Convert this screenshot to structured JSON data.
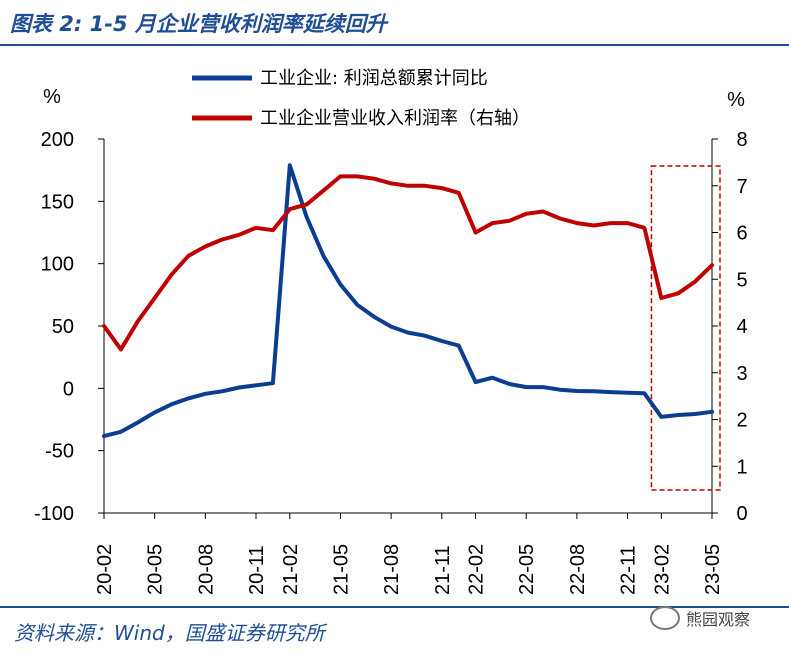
{
  "figure_title": "图表 2:  1-5 月企业营收利润率延续回升",
  "source": "资料来源：Wind，国盛证券研究所",
  "watermark": "熊园观察",
  "chart_data": {
    "type": "line",
    "left_unit": "%",
    "right_unit": "%",
    "left_ylim": [
      -100,
      200
    ],
    "left_ticks": [
      -100,
      -50,
      0,
      50,
      100,
      150,
      200
    ],
    "right_ylim": [
      0,
      8
    ],
    "right_ticks": [
      0,
      1,
      2,
      3,
      4,
      5,
      6,
      7,
      8
    ],
    "x_tick_labels": [
      "20-02",
      "20-05",
      "20-08",
      "20-11",
      "21-02",
      "21-05",
      "21-08",
      "21-11",
      "22-02",
      "22-05",
      "22-08",
      "22-11",
      "23-02",
      "23-05"
    ],
    "x": [
      "20-02",
      "20-03",
      "20-04",
      "20-05",
      "20-06",
      "20-07",
      "20-08",
      "20-09",
      "20-10",
      "20-11",
      "20-12",
      "21-02",
      "21-03",
      "21-04",
      "21-05",
      "21-06",
      "21-07",
      "21-08",
      "21-09",
      "21-10",
      "21-11",
      "21-12",
      "22-02",
      "22-03",
      "22-04",
      "22-05",
      "22-06",
      "22-07",
      "22-08",
      "22-09",
      "22-10",
      "22-11",
      "22-12",
      "23-02",
      "23-03",
      "23-04",
      "23-05"
    ],
    "series": [
      {
        "name": "工业企业: 利润总额累计同比",
        "axis": "left",
        "color": "#0b3d91",
        "values": [
          -38.3,
          -34.9,
          -27.4,
          -19.3,
          -12.8,
          -8.1,
          -4.4,
          -2.4,
          0.7,
          2.4,
          4.1,
          178.9,
          137.3,
          106.0,
          83.4,
          66.9,
          57.3,
          49.5,
          44.7,
          42.2,
          38.0,
          34.3,
          5.0,
          8.5,
          3.5,
          1.0,
          1.0,
          -1.1,
          -2.1,
          -2.3,
          -3.0,
          -3.6,
          -4.0,
          -22.9,
          -21.4,
          -20.6,
          -18.8
        ]
      },
      {
        "name": "工业企业营业收入利润率（右轴）",
        "axis": "right",
        "color": "#c00000",
        "values": [
          4.0,
          3.5,
          4.1,
          4.6,
          5.1,
          5.5,
          5.7,
          5.85,
          5.95,
          6.1,
          6.05,
          6.5,
          6.6,
          6.9,
          7.2,
          7.2,
          7.15,
          7.05,
          7.0,
          7.0,
          6.95,
          6.85,
          6.0,
          6.2,
          6.25,
          6.4,
          6.45,
          6.3,
          6.2,
          6.15,
          6.2,
          6.2,
          6.1,
          4.6,
          4.7,
          4.95,
          5.3
        ]
      }
    ],
    "highlight_box": {
      "from": "22-12",
      "to": "23-05"
    }
  }
}
